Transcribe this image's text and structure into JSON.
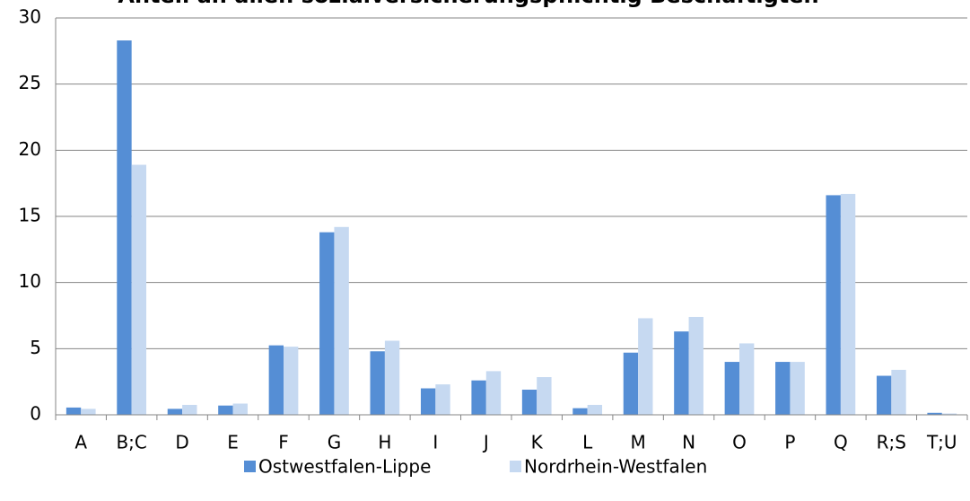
{
  "chart_data": {
    "type": "bar",
    "title": "Anteil an allen sozialversicherungspflichtig Beschäftigten",
    "categories": [
      "A",
      "B;C",
      "D",
      "E",
      "F",
      "G",
      "H",
      "I",
      "J",
      "K",
      "L",
      "M",
      "N",
      "O",
      "P",
      "Q",
      "R;S",
      "T;U"
    ],
    "series": [
      {
        "name": "Ostwestfalen-Lippe",
        "color": "#558ed5",
        "values": [
          0.55,
          28.3,
          0.45,
          0.7,
          5.25,
          13.8,
          4.8,
          2.0,
          2.6,
          1.9,
          0.5,
          4.7,
          6.3,
          4.0,
          4.0,
          16.6,
          2.95,
          0.15
        ]
      },
      {
        "name": "Nordrhein-Westfalen",
        "color": "#c6d9f1",
        "values": [
          0.45,
          18.9,
          0.75,
          0.85,
          5.15,
          14.2,
          5.6,
          2.3,
          3.3,
          2.85,
          0.75,
          7.3,
          7.4,
          5.4,
          4.0,
          16.7,
          3.4,
          0.1
        ]
      }
    ],
    "ylim": [
      0,
      30
    ],
    "yticks": [
      0,
      5,
      10,
      15,
      20,
      25,
      30
    ],
    "grid": true,
    "legend": "bottom"
  }
}
